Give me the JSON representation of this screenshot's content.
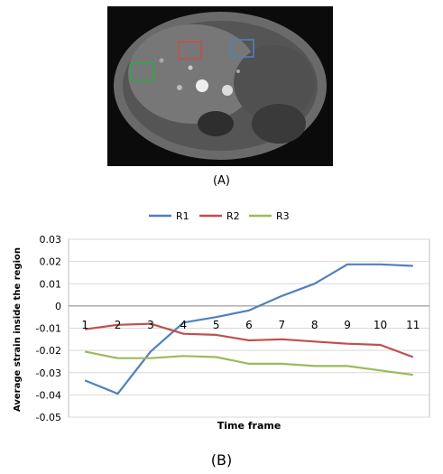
{
  "figure_a": {
    "label": "(A)",
    "roi_boxes": [
      {
        "name": "R2",
        "color": "#c0504d"
      },
      {
        "name": "R1",
        "color": "#4f81bd"
      },
      {
        "name": "R3",
        "color": "#2da84a"
      }
    ]
  },
  "figure_b": {
    "label": "(B)"
  },
  "chart_data": {
    "type": "line",
    "title": "",
    "xlabel": "Time frame",
    "ylabel": "Average strain inside the region",
    "x": [
      1,
      2,
      3,
      4,
      5,
      6,
      7,
      8,
      9,
      10,
      11
    ],
    "x_tick_labels": [
      "1",
      "2",
      "3",
      "4",
      "5",
      "6",
      "7",
      "8",
      "9",
      "10",
      "11"
    ],
    "ylim": [
      -0.05,
      0.03
    ],
    "y_ticks": [
      0.03,
      0.02,
      0.01,
      0,
      -0.01,
      -0.02,
      -0.03,
      -0.04,
      -0.05
    ],
    "y_tick_labels": [
      "0.03",
      "0.02",
      "0.01",
      "0",
      "-0.01",
      "-0.02",
      "-0.03",
      "-0.04",
      "-0.05"
    ],
    "grid": true,
    "legend_position": "top",
    "series": [
      {
        "name": "R1",
        "color": "#4f81bd",
        "values": [
          -0.0335,
          -0.0395,
          -0.0205,
          -0.0075,
          -0.005,
          -0.002,
          0.0045,
          0.01,
          0.0187,
          0.0187,
          0.018
        ]
      },
      {
        "name": "R2",
        "color": "#c0504d",
        "values": [
          -0.0105,
          -0.0085,
          -0.008,
          -0.0125,
          -0.013,
          -0.0155,
          -0.015,
          -0.016,
          -0.017,
          -0.0175,
          -0.023
        ]
      },
      {
        "name": "R3",
        "color": "#9bbb59",
        "values": [
          -0.0205,
          -0.0235,
          -0.0235,
          -0.0225,
          -0.023,
          -0.026,
          -0.026,
          -0.027,
          -0.027,
          -0.029,
          -0.031
        ]
      }
    ]
  }
}
